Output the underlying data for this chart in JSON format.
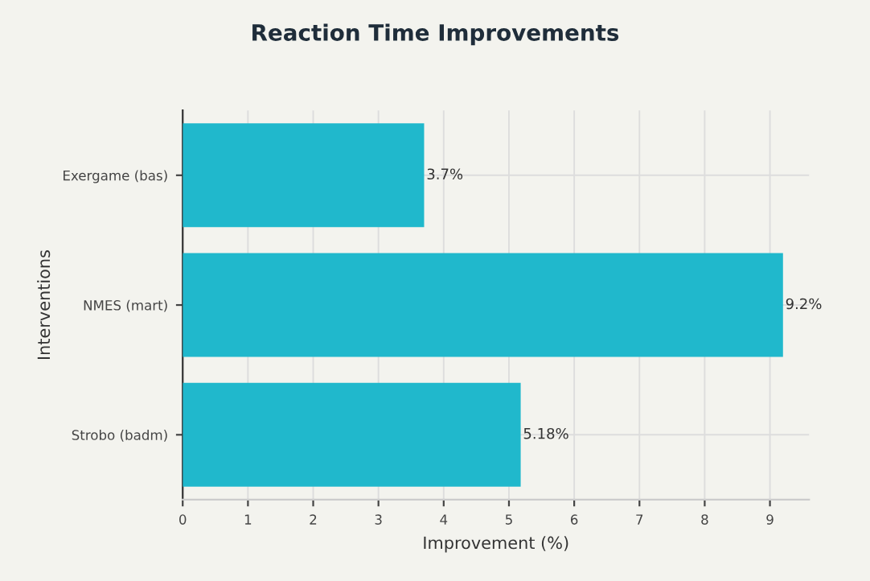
{
  "chart_data": {
    "type": "bar",
    "orientation": "horizontal",
    "title": "Reaction Time Improvements",
    "xlabel": "Improvement (%)",
    "ylabel": "Interventions",
    "categories": [
      "Exergame (bas)",
      "NMES (mart)",
      "Strobo (badm)"
    ],
    "values": [
      3.7,
      9.2,
      5.18
    ],
    "value_labels": [
      "3.7%",
      "9.2%",
      "5.18%"
    ],
    "color": "#20b8cc",
    "xlim": [
      0,
      9.6
    ],
    "xticks": [
      0,
      1,
      2,
      3,
      4,
      5,
      6,
      7,
      8,
      9
    ],
    "grid": true
  }
}
